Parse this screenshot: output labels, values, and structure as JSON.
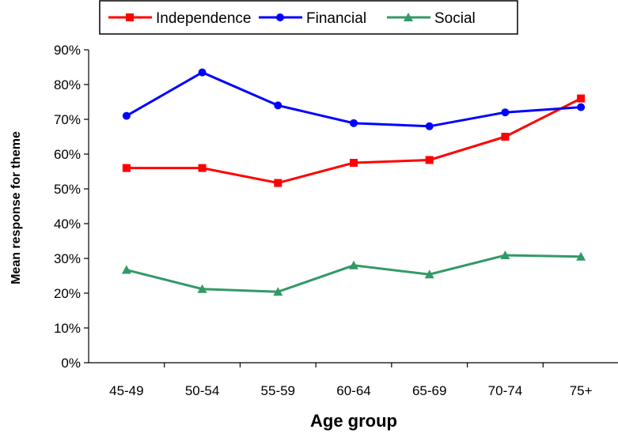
{
  "chart_data": {
    "type": "line",
    "categories": [
      "45-49",
      "50-54",
      "55-59",
      "60-64",
      "65-69",
      "70-74",
      "75+"
    ],
    "series": [
      {
        "name": "Independence",
        "values": [
          56,
          56,
          51.7,
          57.5,
          58.3,
          65,
          76
        ],
        "color": "#ff0000",
        "marker": "square"
      },
      {
        "name": "Financial",
        "values": [
          71,
          83.5,
          74,
          68.9,
          68,
          72,
          73.5
        ],
        "color": "#0000ff",
        "marker": "circle"
      },
      {
        "name": "Social",
        "values": [
          26.7,
          21.2,
          20.4,
          28,
          25.4,
          30.9,
          30.5
        ],
        "color": "#339966",
        "marker": "triangle"
      }
    ],
    "xlabel": "Age group",
    "ylabel": "Mean response for theme",
    "ylim": [
      0,
      90
    ],
    "yticks": [
      "0%",
      "10%",
      "20%",
      "30%",
      "40%",
      "50%",
      "60%",
      "70%",
      "80%",
      "90%"
    ],
    "grid": false,
    "legend_position": "top"
  }
}
